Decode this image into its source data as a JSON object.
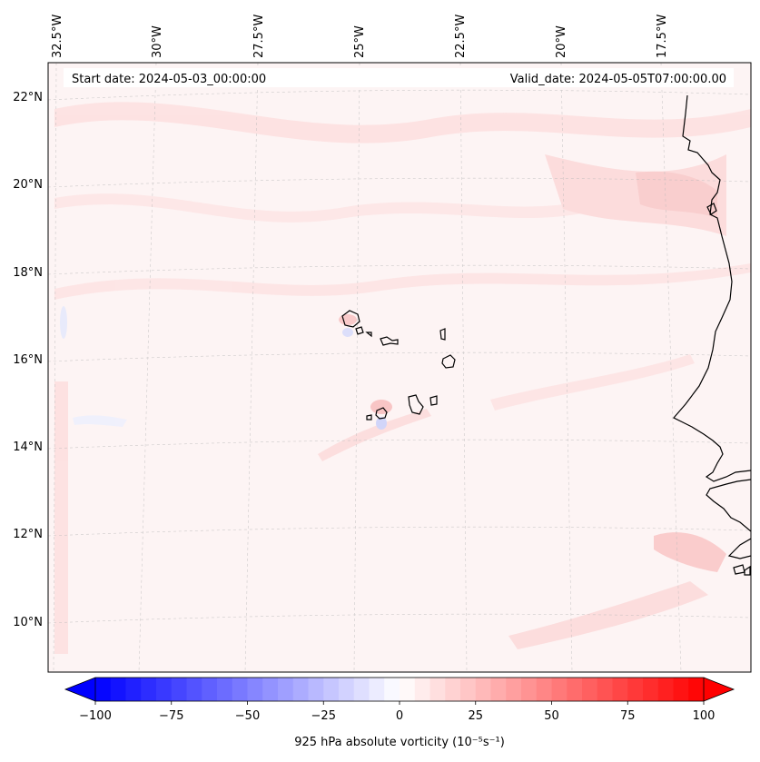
{
  "header": {
    "start_date": "Start date: 2024-05-03_00:00:00",
    "valid_date": "Valid_date: 2024-05-05T07:00:00.00"
  },
  "map": {
    "lon_labels": [
      "32.5°W",
      "30°W",
      "27.5°W",
      "25°W",
      "22.5°W",
      "20°W",
      "17.5°W"
    ],
    "lat_labels": [
      "22°N",
      "20°N",
      "18°N",
      "16°N",
      "14°N",
      "12°N",
      "10°N"
    ],
    "background_color": "#fdf3f3",
    "coast_color": "#000000"
  },
  "colorbar": {
    "label": "925 hPa absolute vorticity (10⁻⁵s⁻¹)",
    "ticks": [
      "−100",
      "−75",
      "−50",
      "−25",
      "0",
      "25",
      "50",
      "75",
      "100"
    ],
    "min": -100,
    "max": 100,
    "step": 5,
    "low_color": "#0000ff",
    "high_color": "#ff0000"
  }
}
